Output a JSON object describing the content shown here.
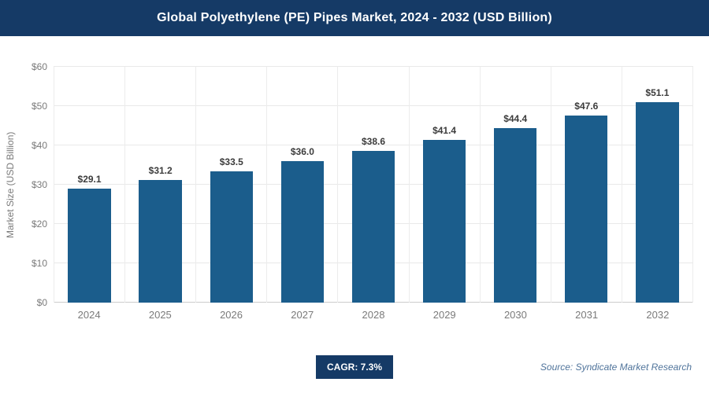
{
  "chart_data": {
    "type": "bar",
    "title": "Global Polyethylene (PE) Pipes Market, 2024 - 2032 (USD Billion)",
    "categories": [
      "2024",
      "2025",
      "2026",
      "2027",
      "2028",
      "2029",
      "2030",
      "2031",
      "2032"
    ],
    "values": [
      29.1,
      31.2,
      33.5,
      36.0,
      38.6,
      41.4,
      44.4,
      47.6,
      51.1
    ],
    "value_labels": [
      "$29.1",
      "$31.2",
      "$33.5",
      "$36.0",
      "$38.6",
      "$41.4",
      "$44.4",
      "$47.6",
      "$51.1"
    ],
    "xlabel": "",
    "ylabel": "Market Size (USD Billion)",
    "ylim": [
      0,
      60
    ],
    "yticks": [
      "$0",
      "$10",
      "$20",
      "$30",
      "$40",
      "$50",
      "$60"
    ],
    "grid": true,
    "legend": "none",
    "bar_color": "#1b5d8c"
  },
  "footer": {
    "cagr_label": "CAGR: 7.3%",
    "source": "Source: Syndicate Market Research"
  },
  "colors": {
    "header_bg": "#153a66",
    "badge_bg": "#153a66",
    "gridline": "#e9e9e9"
  }
}
